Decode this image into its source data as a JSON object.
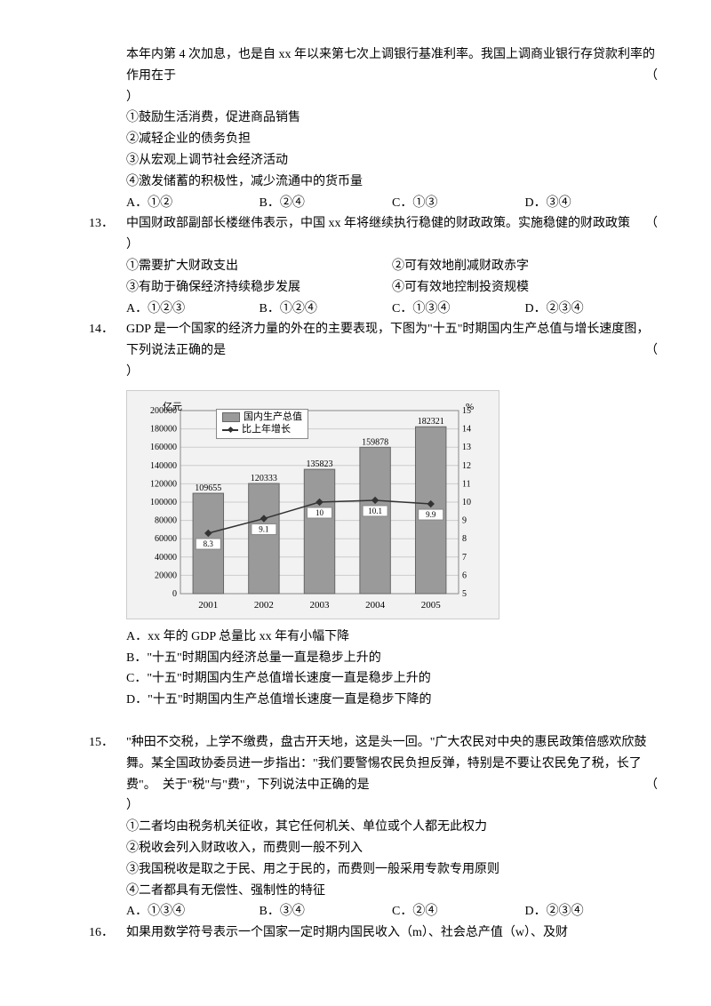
{
  "q12": {
    "pre": "本年内第 4 次加息，也是自 xx 年以来第七次上调银行基准利率。我国上调商业银行存贷款利率的作用在于",
    "paren": "（",
    "paren2": "）",
    "s1": "①鼓励生活消费，促进商品销售",
    "s2": "②减轻企业的债务负担",
    "s3": "③从宏观上调节社会经济活动",
    "s4": "④激发储蓄的积极性，减少流通中的货币量",
    "oA": "A．①②",
    "oB": "B．②④",
    "oC": "C．①③",
    "oD": "D．③④"
  },
  "q13": {
    "num": "13．",
    "text": "中国财政部副部长楼继伟表示，中国 xx 年将继续执行稳健的财政政策。实施稳健的财政政策",
    "paren": "（",
    "paren2": "）",
    "s1": "①需要扩大财政支出",
    "s2": "②可有效地削减财政赤字",
    "s3": "③有助于确保经济持续稳步发展",
    "s4": "④可有效地控制投资规模",
    "oA": "A．①②③",
    "oB": "B．①②④",
    "oC": "C．①③④",
    "oD": "D．②③④"
  },
  "q14": {
    "num": "14．",
    "text": "GDP 是一个国家的经济力量的外在的主要表现，下图为\"十五\"时期国内生产总值与增长速度图，下列说法正确的是",
    "paren": "（",
    "paren2": "）",
    "chart": {
      "type": "bar-line",
      "yleft_label": "亿元",
      "yright_label": "%",
      "yleft_ticks": [
        0,
        20000,
        40000,
        60000,
        80000,
        100000,
        120000,
        140000,
        160000,
        180000,
        200000
      ],
      "yright_ticks": [
        5,
        6,
        7,
        8,
        9,
        10,
        11,
        12,
        13,
        14,
        15
      ],
      "categories": [
        "2001",
        "2002",
        "2003",
        "2004",
        "2005"
      ],
      "bar_values": [
        109655,
        120333,
        135823,
        159878,
        182321
      ],
      "line_values": [
        8.3,
        9.1,
        10.0,
        10.1,
        9.9
      ],
      "bar_color": "#9a9a9a",
      "grid_color": "#cccccc",
      "line_color": "#333333",
      "bg_color": "#f2f2f2",
      "legend_bar": "国内生产总值",
      "legend_line": "比上年增长"
    },
    "oA": "A．xx 年的 GDP 总量比 xx 年有小幅下降",
    "oB": "B．\"十五\"时期国内经济总量一直是稳步上升的",
    "oC": "C．\"十五\"时期国内生产总值增长速度一直是稳步上升的",
    "oD": "D．\"十五\"时期国内生产总值增长速度一直是稳步下降的"
  },
  "q15": {
    "num": "15．",
    "text": "\"种田不交税，上学不缴费，盘古开天地，这是头一回。\"广大农民对中央的惠民政策倍感欢欣鼓舞。某全国政协委员进一步指出：\"我们要警惕农民负担反弹，特别是不要让农民免了税，长了费\"。　关于\"税\"与\"费\"，下列说法中正确的是",
    "paren": "（",
    "paren2": "）",
    "s1": "①二者均由税务机关征收，其它任何机关、单位或个人都无此权力",
    "s2": "②税收会列入财政收入，而费则一般不列入",
    "s3": "③我国税收是取之于民、用之于民的，而费则一般采用专款专用原则",
    "s4": "④二者都具有无偿性、强制性的特征",
    "oA": "A．①③④",
    "oB": "B．③④",
    "oC": "C．②④",
    "oD": "D．②③④"
  },
  "q16": {
    "num": "16．",
    "text": "如果用数学符号表示一个国家一定时期内国民收入（m）、社会总产值（w）、及财"
  }
}
